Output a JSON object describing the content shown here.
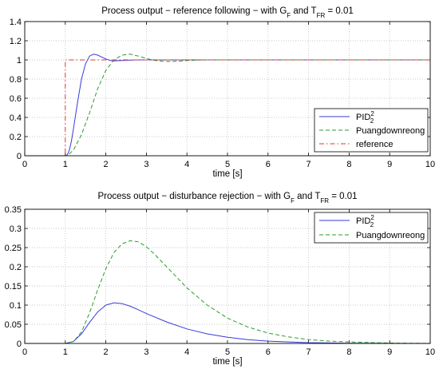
{
  "chart_data": [
    {
      "type": "line",
      "title": {
        "main": "Process output − reference following − with G",
        "sub1": "F",
        "mid": " and T",
        "sub2": "FR",
        "tail": " = 0.01"
      },
      "xlabel": "time [s]",
      "ylabel": "",
      "xlim": [
        0,
        10
      ],
      "ylim": [
        0,
        1.4
      ],
      "xticks": [
        0,
        1,
        2,
        3,
        4,
        5,
        6,
        7,
        8,
        9,
        10
      ],
      "yticks": [
        0,
        0.2,
        0.4,
        0.6,
        0.8,
        1,
        1.2,
        1.4
      ],
      "ytick_labels": [
        "0",
        "0.2",
        "0.4",
        "0.6",
        "0.8",
        "1",
        "1.2",
        "1.4"
      ],
      "grid": true,
      "legend_position": "bottom-right",
      "series": [
        {
          "name": "PID",
          "name_sup": "2",
          "name_sub": "2",
          "color": "#3a3adb",
          "dash": "",
          "x": [
            0,
            1,
            1.05,
            1.1,
            1.15,
            1.2,
            1.3,
            1.4,
            1.5,
            1.6,
            1.7,
            1.8,
            1.9,
            2.0,
            2.1,
            2.2,
            2.4,
            2.6,
            2.8,
            3.0,
            3.5,
            4,
            5,
            6,
            7,
            8,
            9,
            10
          ],
          "y": [
            0,
            0,
            0.01,
            0.06,
            0.15,
            0.28,
            0.55,
            0.8,
            0.96,
            1.04,
            1.06,
            1.05,
            1.03,
            1.01,
            0.995,
            0.99,
            0.993,
            0.998,
            1.0,
            1.0,
            1.0,
            1.0,
            1.0,
            1.0,
            1.0,
            1.0,
            1.0,
            1.0
          ]
        },
        {
          "name": "Puangdownreong",
          "color": "#2e9a2e",
          "dash": "5,3",
          "x": [
            0,
            1,
            1.1,
            1.2,
            1.4,
            1.6,
            1.8,
            2.0,
            2.2,
            2.4,
            2.6,
            2.8,
            3.0,
            3.2,
            3.4,
            3.6,
            3.8,
            4.0,
            4.2,
            4.5,
            5,
            5.5,
            6,
            7,
            8,
            9,
            10
          ],
          "y": [
            0,
            0,
            0.02,
            0.06,
            0.22,
            0.45,
            0.7,
            0.89,
            1.0,
            1.05,
            1.06,
            1.04,
            1.015,
            0.995,
            0.985,
            0.983,
            0.987,
            0.993,
            0.997,
            1.0,
            1.0,
            1.0,
            1.0,
            1.0,
            1.0,
            1.0,
            1.0
          ]
        },
        {
          "name": "reference",
          "color": "#d93a3a",
          "dash": "6,3,1.5,3",
          "x": [
            0,
            1,
            1,
            10
          ],
          "y": [
            0,
            0,
            1,
            1
          ]
        }
      ]
    },
    {
      "type": "line",
      "title": {
        "main": "Process output − disturbance rejection − with G",
        "sub1": "F",
        "mid": " and T",
        "sub2": "FR",
        "tail": " = 0.01"
      },
      "xlabel": "time [s]",
      "ylabel": "",
      "xlim": [
        0,
        10
      ],
      "ylim": [
        0,
        0.35
      ],
      "xticks": [
        0,
        1,
        2,
        3,
        4,
        5,
        6,
        7,
        8,
        9,
        10
      ],
      "yticks": [
        0,
        0.05,
        0.1,
        0.15,
        0.2,
        0.25,
        0.3,
        0.35
      ],
      "ytick_labels": [
        "0",
        "0.05",
        "0.1",
        "0.15",
        "0.2",
        "0.25",
        "0.3",
        "0.35"
      ],
      "grid": true,
      "legend_position": "top-right",
      "series": [
        {
          "name": "PID",
          "name_sup": "2",
          "name_sub": "2",
          "color": "#3a3adb",
          "dash": "",
          "x": [
            0,
            1,
            1.2,
            1.4,
            1.6,
            1.8,
            2.0,
            2.2,
            2.4,
            2.6,
            2.8,
            3.0,
            3.5,
            4.0,
            4.5,
            5.0,
            5.5,
            6.0,
            7.0,
            8.0,
            9.0,
            10
          ],
          "y": [
            0,
            0,
            0.005,
            0.025,
            0.055,
            0.082,
            0.1,
            0.106,
            0.104,
            0.097,
            0.088,
            0.078,
            0.056,
            0.038,
            0.025,
            0.016,
            0.01,
            0.006,
            0.002,
            0.0006,
            0.0002,
            0
          ]
        },
        {
          "name": "Puangdownreong",
          "color": "#2e9a2e",
          "dash": "5,3",
          "x": [
            0,
            1,
            1.2,
            1.4,
            1.6,
            1.8,
            2.0,
            2.2,
            2.4,
            2.6,
            2.8,
            3.0,
            3.2,
            3.5,
            4.0,
            4.5,
            5.0,
            5.5,
            6.0,
            6.5,
            7.0,
            7.5,
            8.0,
            9.0,
            10
          ],
          "y": [
            0,
            0,
            0.005,
            0.03,
            0.08,
            0.14,
            0.195,
            0.237,
            0.26,
            0.268,
            0.265,
            0.252,
            0.233,
            0.2,
            0.145,
            0.1,
            0.066,
            0.043,
            0.027,
            0.017,
            0.01,
            0.006,
            0.004,
            0.001,
            0.0002
          ]
        }
      ]
    }
  ]
}
